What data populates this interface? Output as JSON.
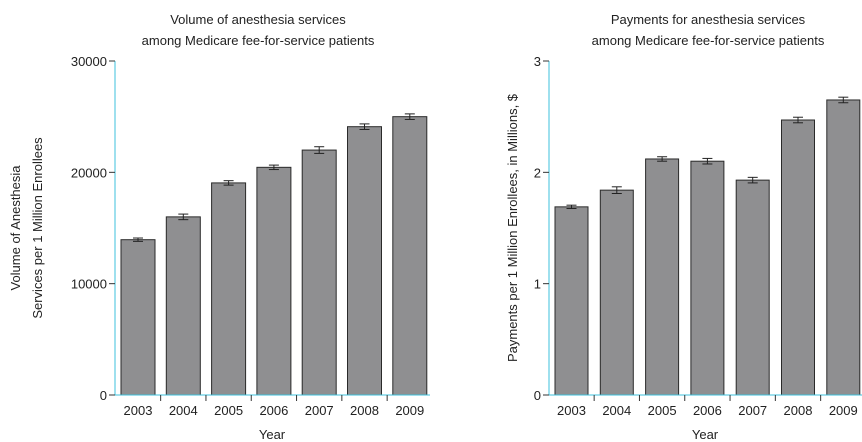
{
  "chart_data": [
    {
      "type": "bar",
      "title_lines": [
        "Volume of anesthesia services",
        "among Medicare fee-for-service patients"
      ],
      "xlabel": "Year",
      "ylabel_lines": [
        "Volume of Anesthesia",
        "Services per 1 Million Enrollees"
      ],
      "categories": [
        "2003",
        "2004",
        "2005",
        "2006",
        "2007",
        "2008",
        "2009"
      ],
      "values": [
        13950,
        16000,
        19050,
        20450,
        22000,
        24100,
        25000
      ],
      "error": [
        150,
        250,
        200,
        200,
        300,
        250,
        250
      ],
      "ylim": [
        0,
        30000
      ],
      "yticks": [
        0,
        10000,
        20000,
        30000
      ],
      "ytick_labels": [
        "0",
        "10000",
        "20000",
        "30000"
      ],
      "bar_color": "#8f8f91",
      "axis_color": "#3ec1dc"
    },
    {
      "type": "bar",
      "title_lines": [
        "Payments for anesthesia services",
        "among Medicare fee-for-service patients"
      ],
      "xlabel": "Year",
      "ylabel_lines": [
        "Payments per 1 Million Enrollees, in Millions, $"
      ],
      "categories": [
        "2003",
        "2004",
        "2005",
        "2006",
        "2007",
        "2008",
        "2009"
      ],
      "values": [
        1.69,
        1.84,
        2.12,
        2.1,
        1.93,
        2.47,
        2.65
      ],
      "error": [
        0.015,
        0.03,
        0.02,
        0.025,
        0.025,
        0.025,
        0.025
      ],
      "ylim": [
        0,
        3
      ],
      "yticks": [
        0,
        1,
        2,
        3
      ],
      "ytick_labels": [
        "0",
        "1",
        "2",
        "3"
      ],
      "bar_color": "#8f8f91",
      "axis_color": "#3ec1dc"
    }
  ]
}
